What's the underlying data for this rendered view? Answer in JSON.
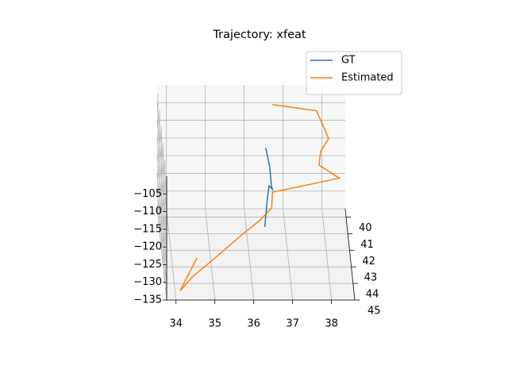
{
  "chart_data": {
    "type": "line3d",
    "title": "Trajectory: xfeat",
    "series": [
      {
        "name": "GT",
        "color": "#1f77b4",
        "x": [
          36.49,
          36.57,
          36.59,
          36.61,
          36.53,
          36.47,
          36.43,
          36.37
        ],
        "y": [
          40.98,
          41.48,
          41.98,
          42.07,
          41.98,
          42.32,
          42.63,
          43.07
        ],
        "z": [
          -110.9,
          -113.9,
          -116.9,
          -117.4,
          -116.9,
          -118.9,
          -120.8,
          -123.4
        ]
      },
      {
        "name": "Estimated",
        "color": "#ff7f0e",
        "x": [
          36.71,
          37.84,
          38.12,
          37.9,
          37.84,
          38.35,
          36.61,
          36.57,
          36.24,
          35.84,
          34.98,
          34.47,
          34.12,
          34.59
        ],
        "y": [
          39.83,
          39.99,
          40.73,
          41.06,
          41.44,
          41.77,
          42.15,
          42.57,
          42.91,
          43.22,
          43.95,
          44.37,
          44.75,
          43.89
        ],
        "z": [
          -104.0,
          -105.0,
          -109.4,
          -111.4,
          -113.6,
          -115.7,
          -117.9,
          -120.4,
          -122.4,
          -124.3,
          -128.7,
          -131.2,
          -133.5,
          -128.3
        ]
      }
    ],
    "xlim": [
      33.76,
      38.6
    ],
    "ylim": [
      39.5,
      45
    ],
    "zlim": [
      -135,
      -100
    ],
    "xticks": [
      34,
      35,
      36,
      37,
      38
    ],
    "yticks": [
      40,
      41,
      42,
      43,
      44,
      45
    ],
    "zticks": [
      {
        "value": -135,
        "label": "−135"
      },
      {
        "value": -130,
        "label": "−130"
      },
      {
        "value": -125,
        "label": "−125"
      },
      {
        "value": -120,
        "label": "−120"
      },
      {
        "value": -115,
        "label": "−115"
      },
      {
        "value": -110,
        "label": "−110"
      },
      {
        "value": -105,
        "label": "−105"
      }
    ],
    "grid": true,
    "legend": "upper right"
  }
}
